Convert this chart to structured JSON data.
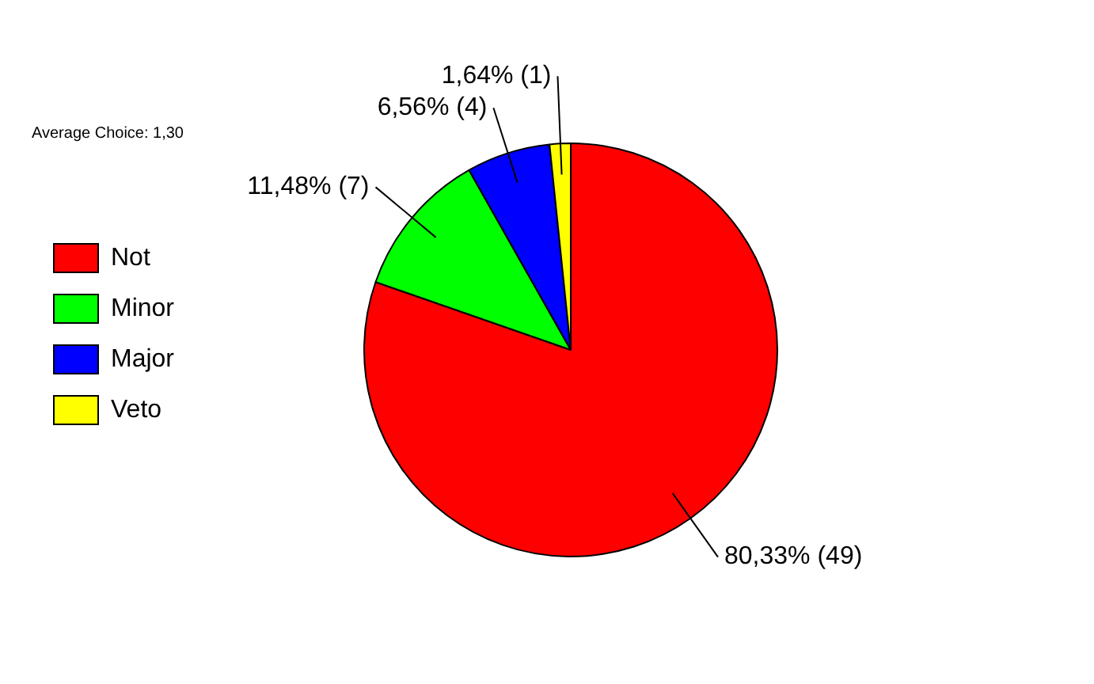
{
  "chart_data": {
    "type": "pie",
    "title": "Average Choice: 1,30",
    "categories": [
      "Not",
      "Minor",
      "Major",
      "Veto"
    ],
    "values": [
      49,
      7,
      4,
      1
    ],
    "value_labels": [
      "80,33% (49)",
      "11,48% (7)",
      "6,56% (4)",
      "1,64% (1)"
    ],
    "colors": [
      "#ff0000",
      "#00ff00",
      "#0000ff",
      "#ffff00"
    ],
    "legend": "left"
  }
}
